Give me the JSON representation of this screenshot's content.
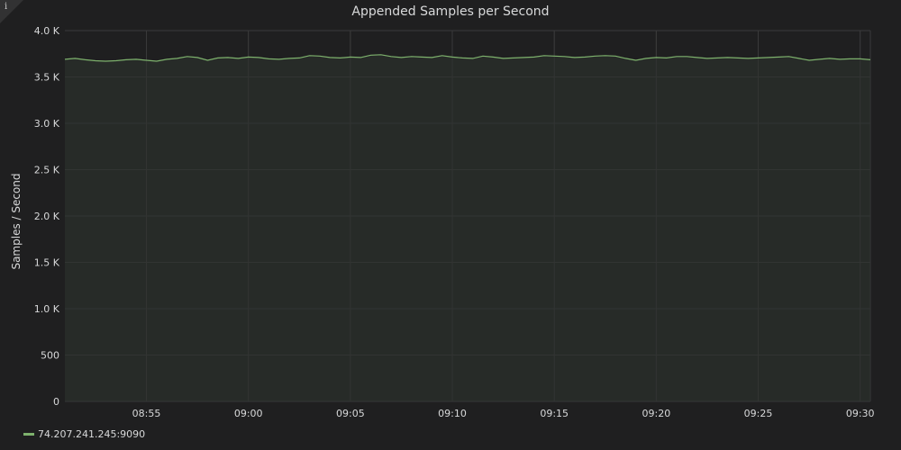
{
  "panel": {
    "info_icon": "info-icon",
    "info_glyph": "i"
  },
  "chart_data": {
    "type": "area",
    "title": "Appended Samples per Second",
    "xlabel": "",
    "ylabel": "Samples / Second",
    "ylim": [
      0,
      4000
    ],
    "xlim": [
      "08:51:00",
      "09:30:30"
    ],
    "grid": true,
    "legend_position": "bottom-left",
    "y_ticks": [
      {
        "value": 0,
        "label": "0"
      },
      {
        "value": 500,
        "label": "500"
      },
      {
        "value": 1000,
        "label": "1.0 K"
      },
      {
        "value": 1500,
        "label": "1.5 K"
      },
      {
        "value": 2000,
        "label": "2.0 K"
      },
      {
        "value": 2500,
        "label": "2.5 K"
      },
      {
        "value": 3000,
        "label": "3.0 K"
      },
      {
        "value": 3500,
        "label": "3.5 K"
      },
      {
        "value": 4000,
        "label": "4.0 K"
      }
    ],
    "x_ticks": [
      {
        "value": "08:55",
        "label": "08:55"
      },
      {
        "value": "09:00",
        "label": "09:00"
      },
      {
        "value": "09:05",
        "label": "09:05"
      },
      {
        "value": "09:10",
        "label": "09:10"
      },
      {
        "value": "09:15",
        "label": "09:15"
      },
      {
        "value": "09:20",
        "label": "09:20"
      },
      {
        "value": "09:25",
        "label": "09:25"
      },
      {
        "value": "09:30",
        "label": "09:30"
      }
    ],
    "series": [
      {
        "name": "74.207.241.245:9090",
        "color": "#7eb26d",
        "fill_color": "#272b28",
        "points": [
          [
            "08:51:00",
            3690
          ],
          [
            "08:51:30",
            3700
          ],
          [
            "08:52:00",
            3685
          ],
          [
            "08:52:30",
            3675
          ],
          [
            "08:53:00",
            3670
          ],
          [
            "08:53:30",
            3675
          ],
          [
            "08:54:00",
            3685
          ],
          [
            "08:54:30",
            3690
          ],
          [
            "08:55:00",
            3680
          ],
          [
            "08:55:30",
            3670
          ],
          [
            "08:56:00",
            3690
          ],
          [
            "08:56:30",
            3700
          ],
          [
            "08:57:00",
            3720
          ],
          [
            "08:57:30",
            3710
          ],
          [
            "08:58:00",
            3680
          ],
          [
            "08:58:30",
            3705
          ],
          [
            "08:59:00",
            3710
          ],
          [
            "08:59:30",
            3700
          ],
          [
            "09:00:00",
            3715
          ],
          [
            "09:00:30",
            3710
          ],
          [
            "09:01:00",
            3695
          ],
          [
            "09:01:30",
            3690
          ],
          [
            "09:02:00",
            3700
          ],
          [
            "09:02:30",
            3705
          ],
          [
            "09:03:00",
            3730
          ],
          [
            "09:03:30",
            3725
          ],
          [
            "09:04:00",
            3710
          ],
          [
            "09:04:30",
            3705
          ],
          [
            "09:05:00",
            3715
          ],
          [
            "09:05:30",
            3710
          ],
          [
            "09:06:00",
            3735
          ],
          [
            "09:06:30",
            3740
          ],
          [
            "09:07:00",
            3720
          ],
          [
            "09:07:30",
            3710
          ],
          [
            "09:08:00",
            3720
          ],
          [
            "09:08:30",
            3715
          ],
          [
            "09:09:00",
            3710
          ],
          [
            "09:09:30",
            3730
          ],
          [
            "09:10:00",
            3715
          ],
          [
            "09:10:30",
            3705
          ],
          [
            "09:11:00",
            3700
          ],
          [
            "09:11:30",
            3725
          ],
          [
            "09:12:00",
            3715
          ],
          [
            "09:12:30",
            3700
          ],
          [
            "09:13:00",
            3705
          ],
          [
            "09:13:30",
            3710
          ],
          [
            "09:14:00",
            3715
          ],
          [
            "09:14:30",
            3730
          ],
          [
            "09:15:00",
            3725
          ],
          [
            "09:15:30",
            3720
          ],
          [
            "09:16:00",
            3710
          ],
          [
            "09:16:30",
            3715
          ],
          [
            "09:17:00",
            3725
          ],
          [
            "09:17:30",
            3730
          ],
          [
            "09:18:00",
            3725
          ],
          [
            "09:18:30",
            3700
          ],
          [
            "09:19:00",
            3680
          ],
          [
            "09:19:30",
            3700
          ],
          [
            "09:20:00",
            3710
          ],
          [
            "09:20:30",
            3705
          ],
          [
            "09:21:00",
            3720
          ],
          [
            "09:21:30",
            3720
          ],
          [
            "09:22:00",
            3710
          ],
          [
            "09:22:30",
            3700
          ],
          [
            "09:23:00",
            3705
          ],
          [
            "09:23:30",
            3710
          ],
          [
            "09:24:00",
            3705
          ],
          [
            "09:24:30",
            3700
          ],
          [
            "09:25:00",
            3705
          ],
          [
            "09:25:30",
            3710
          ],
          [
            "09:26:00",
            3715
          ],
          [
            "09:26:30",
            3720
          ],
          [
            "09:27:00",
            3700
          ],
          [
            "09:27:30",
            3680
          ],
          [
            "09:28:00",
            3690
          ],
          [
            "09:28:30",
            3700
          ],
          [
            "09:29:00",
            3690
          ],
          [
            "09:29:30",
            3695
          ],
          [
            "09:30:00",
            3695
          ],
          [
            "09:30:30",
            3685
          ]
        ]
      }
    ]
  },
  "colors": {
    "background": "#1f1f20",
    "grid": "#3a3a3b",
    "text": "#d8d9da"
  }
}
